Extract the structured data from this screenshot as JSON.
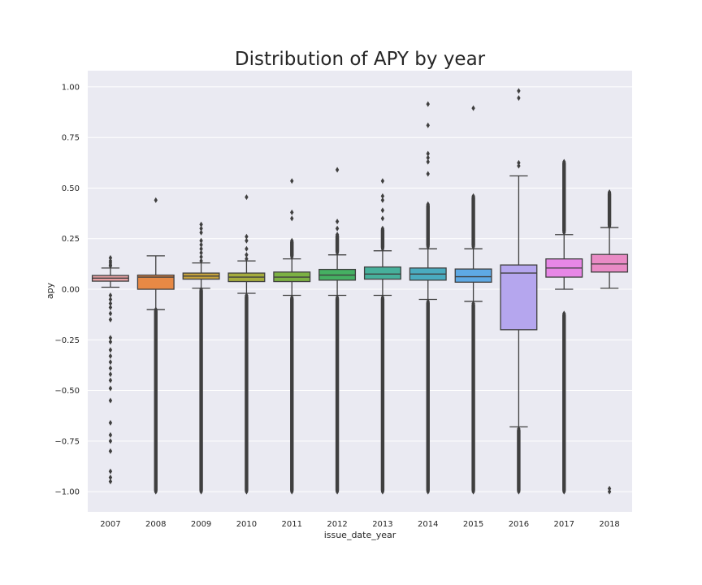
{
  "chart_data": {
    "type": "box",
    "title": "Distribution of APY by year",
    "xlabel": "issue_date_year",
    "ylabel": "apy",
    "ylim": [
      -1.1,
      1.08
    ],
    "yticks": [
      1.0,
      0.75,
      0.5,
      0.25,
      0.0,
      -0.25,
      -0.5,
      -0.75,
      -1.0
    ],
    "ytick_labels": [
      "1.00",
      "0.75",
      "0.50",
      "0.25",
      "0.00",
      "−0.25",
      "−0.50",
      "−0.75",
      "−1.00"
    ],
    "grid": true,
    "categories": [
      "2007",
      "2008",
      "2009",
      "2010",
      "2011",
      "2012",
      "2013",
      "2014",
      "2015",
      "2016",
      "2017",
      "2018"
    ],
    "colors": [
      "#e8a0a3",
      "#e78945",
      "#c5a23d",
      "#a5ac3d",
      "#7cb143",
      "#45b062",
      "#47b09b",
      "#4aabbf",
      "#5ea9e4",
      "#b5a6ee",
      "#e787e6",
      "#e98bc5"
    ],
    "boxes": [
      {
        "q1": 0.04,
        "median": 0.055,
        "q3": 0.068,
        "whisker_low": 0.01,
        "whisker_high": 0.105,
        "outliers": [
          0.155,
          0.14,
          0.13,
          0.12,
          0.115,
          -0.03,
          -0.05,
          -0.07,
          -0.09,
          -0.12,
          -0.15,
          -0.24,
          -0.26,
          -0.3,
          -0.33,
          -0.36,
          -0.39,
          -0.42,
          -0.45,
          -0.49,
          -0.55,
          -0.66,
          -0.72,
          -0.75,
          -0.8,
          -0.9,
          -0.93,
          -0.95
        ]
      },
      {
        "q1": 0.0,
        "median": 0.06,
        "q3": 0.07,
        "whisker_low": -0.1,
        "whisker_high": 0.165,
        "outliers": [
          0.44
        ],
        "outlier_ranges": [
          [
            -1.0,
            -0.1
          ]
        ]
      },
      {
        "q1": 0.05,
        "median": 0.065,
        "q3": 0.08,
        "whisker_low": 0.005,
        "whisker_high": 0.13,
        "outliers": [
          0.32,
          0.3,
          0.28,
          0.24,
          0.22,
          0.2,
          0.18,
          0.16,
          0.14
        ],
        "outlier_ranges": [
          [
            -1.0,
            0.0
          ]
        ]
      },
      {
        "q1": 0.038,
        "median": 0.06,
        "q3": 0.08,
        "whisker_low": -0.02,
        "whisker_high": 0.14,
        "outliers": [
          0.455,
          0.26,
          0.24,
          0.2,
          0.17,
          0.15
        ],
        "outlier_ranges": [
          [
            -1.0,
            -0.03
          ]
        ]
      },
      {
        "q1": 0.038,
        "median": 0.06,
        "q3": 0.085,
        "whisker_low": -0.03,
        "whisker_high": 0.15,
        "outliers": [
          0.535,
          0.38,
          0.35
        ],
        "outlier_ranges": [
          [
            -1.0,
            -0.04
          ],
          [
            0.16,
            0.24
          ]
        ]
      },
      {
        "q1": 0.045,
        "median": 0.07,
        "q3": 0.098,
        "whisker_low": -0.03,
        "whisker_high": 0.17,
        "outliers": [
          0.59,
          0.335,
          0.3
        ],
        "outlier_ranges": [
          [
            -1.0,
            -0.04
          ],
          [
            0.18,
            0.27
          ]
        ]
      },
      {
        "q1": 0.05,
        "median": 0.075,
        "q3": 0.11,
        "whisker_low": -0.03,
        "whisker_high": 0.19,
        "outliers": [
          0.535,
          0.46,
          0.44,
          0.39,
          0.35
        ],
        "outlier_ranges": [
          [
            -1.0,
            -0.04
          ],
          [
            0.2,
            0.3
          ]
        ]
      },
      {
        "q1": 0.045,
        "median": 0.075,
        "q3": 0.105,
        "whisker_low": -0.05,
        "whisker_high": 0.2,
        "outliers": [
          0.915,
          0.81,
          0.67,
          0.65,
          0.63,
          0.57
        ],
        "outlier_ranges": [
          [
            -1.0,
            -0.06
          ],
          [
            0.21,
            0.42
          ]
        ]
      },
      {
        "q1": 0.035,
        "median": 0.062,
        "q3": 0.1,
        "whisker_low": -0.06,
        "whisker_high": 0.2,
        "outliers": [
          0.895
        ],
        "outlier_ranges": [
          [
            -1.0,
            -0.07
          ],
          [
            0.21,
            0.46
          ]
        ]
      },
      {
        "q1": -0.2,
        "median": 0.08,
        "q3": 0.12,
        "whisker_low": -0.68,
        "whisker_high": 0.56,
        "outliers": [
          0.98,
          0.945,
          0.625,
          0.61
        ],
        "outlier_ranges": [
          [
            -1.0,
            -0.69
          ]
        ]
      },
      {
        "q1": 0.06,
        "median": 0.105,
        "q3": 0.15,
        "whisker_low": 0.0,
        "whisker_high": 0.27,
        "outliers": [],
        "outlier_ranges": [
          [
            -1.0,
            -0.12
          ],
          [
            0.28,
            0.63
          ]
        ]
      },
      {
        "q1": 0.085,
        "median": 0.125,
        "q3": 0.172,
        "whisker_low": 0.005,
        "whisker_high": 0.305,
        "outliers": [
          -0.985,
          -1.0
        ],
        "outlier_ranges": [
          [
            0.31,
            0.48
          ]
        ]
      }
    ]
  }
}
